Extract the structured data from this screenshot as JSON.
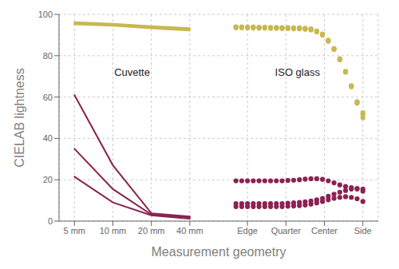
{
  "chart_data": {
    "type": "line",
    "xlabel": "Measurement geometry",
    "ylabel": "CIELAB lightness",
    "xlim": [
      -0.4,
      7.9
    ],
    "xticks": [
      {
        "value": 0,
        "label": "5 mm"
      },
      {
        "value": 1,
        "label": "10 mm"
      },
      {
        "value": 2,
        "label": "20 mm"
      },
      {
        "value": 3,
        "label": "40 mm"
      },
      {
        "value": 4.5,
        "label": "Edge"
      },
      {
        "value": 5.5,
        "label": "Quarter"
      },
      {
        "value": 6.5,
        "label": "Center"
      },
      {
        "value": 7.5,
        "label": "Side"
      }
    ],
    "ylim": [
      0,
      100
    ],
    "yticks": [
      0,
      20,
      40,
      60,
      80,
      100
    ],
    "grid": true,
    "annotations": [
      {
        "text": "Cuvette",
        "x": 1.5,
        "y": 72
      },
      {
        "text": "ISO glass",
        "x": 5.8,
        "y": 72
      }
    ],
    "series": [
      {
        "type": "line",
        "line_style": "solid",
        "color": "#C8B850",
        "x": [
          0,
          1,
          2,
          3
        ],
        "values": [
          95.2,
          94.5,
          93.2,
          92.2
        ]
      },
      {
        "type": "line",
        "line_style": "solid",
        "color": "#C8B850",
        "x": [
          0,
          1,
          2,
          3
        ],
        "values": [
          95.8,
          95.0,
          93.8,
          92.8
        ]
      },
      {
        "type": "line",
        "line_style": "solid",
        "color": "#C8B850",
        "x": [
          0,
          1,
          2,
          3
        ],
        "values": [
          96.2,
          95.5,
          94.3,
          93.3
        ]
      },
      {
        "type": "scatter",
        "marker": "circle",
        "color": "#C8B850",
        "x": [
          4.2,
          4.35,
          4.5,
          4.65,
          4.8,
          4.95,
          5.1,
          5.25,
          5.4,
          5.55,
          5.7,
          5.85,
          6.0,
          6.15,
          6.3,
          6.45,
          6.6,
          6.75,
          6.9,
          7.05,
          7.2,
          7.35,
          7.5
        ],
        "values": [
          93.5,
          93.5,
          93.4,
          93.4,
          93.3,
          93.3,
          93.2,
          93.2,
          93.1,
          93.1,
          93.0,
          93.0,
          92.8,
          92.5,
          91.5,
          90.0,
          87.0,
          83.0,
          78.0,
          72.0,
          65.0,
          57.0,
          50.0
        ]
      },
      {
        "type": "scatter",
        "marker": "circle",
        "color": "#C8B850",
        "x": [
          4.2,
          4.35,
          4.5,
          4.65,
          4.8,
          4.95,
          5.1,
          5.25,
          5.4,
          5.55,
          5.7,
          5.85,
          6.0,
          6.15,
          6.3,
          6.45,
          6.6,
          6.75,
          6.9,
          7.05,
          7.2,
          7.35,
          7.5
        ],
        "values": [
          93.8,
          93.8,
          93.7,
          93.7,
          93.6,
          93.6,
          93.5,
          93.5,
          93.4,
          93.4,
          93.3,
          93.3,
          93.1,
          92.8,
          91.8,
          90.3,
          87.3,
          83.3,
          78.3,
          72.3,
          65.3,
          57.5,
          51.5
        ]
      },
      {
        "type": "scatter",
        "marker": "circle",
        "color": "#C8B850",
        "x": [
          4.2,
          4.35,
          4.5,
          4.65,
          4.8,
          4.95,
          5.1,
          5.25,
          5.4,
          5.55,
          5.7,
          5.85,
          6.0,
          6.15,
          6.3,
          6.45,
          6.6,
          6.75,
          6.9,
          7.05,
          7.2,
          7.35,
          7.5
        ],
        "values": [
          94.0,
          94.0,
          93.9,
          93.9,
          93.8,
          93.8,
          93.7,
          93.7,
          93.6,
          93.6,
          93.5,
          93.5,
          93.3,
          93.0,
          92.0,
          90.5,
          87.5,
          83.5,
          78.5,
          72.5,
          65.5,
          57.8,
          52.5
        ]
      },
      {
        "type": "line",
        "line_style": "solid",
        "color": "#8B2252",
        "x": [
          0,
          1,
          2,
          3
        ],
        "values": [
          21.5,
          9.0,
          2.8,
          1.2
        ]
      },
      {
        "type": "line",
        "line_style": "solid",
        "color": "#8B2252",
        "x": [
          0,
          1,
          2,
          3
        ],
        "values": [
          35.0,
          15.5,
          3.2,
          1.8
        ]
      },
      {
        "type": "line",
        "line_style": "solid",
        "color": "#8B2252",
        "x": [
          0,
          1,
          2,
          3
        ],
        "values": [
          61.0,
          27.0,
          3.8,
          2.2
        ]
      },
      {
        "type": "scatter",
        "marker": "circle",
        "color": "#8B2252",
        "x": [
          4.2,
          4.35,
          4.5,
          4.65,
          4.8,
          4.95,
          5.1,
          5.25,
          5.4,
          5.55,
          5.7,
          5.85,
          6.0,
          6.15,
          6.3,
          6.45,
          6.6,
          6.75,
          6.9,
          7.05,
          7.2,
          7.35,
          7.5
        ],
        "values": [
          7.0,
          7.0,
          7.0,
          7.0,
          7.0,
          7.0,
          7.0,
          7.0,
          7.0,
          7.2,
          7.3,
          7.5,
          7.8,
          8.2,
          8.8,
          9.5,
          10.3,
          11.0,
          11.5,
          11.8,
          11.5,
          10.8,
          9.5
        ]
      },
      {
        "type": "scatter",
        "marker": "circle",
        "color": "#8B2252",
        "x": [
          4.2,
          4.35,
          4.5,
          4.65,
          4.8,
          4.95,
          5.1,
          5.25,
          5.4,
          5.55,
          5.7,
          5.85,
          6.0,
          6.15,
          6.3,
          6.45,
          6.6,
          6.75,
          6.9,
          7.05,
          7.2,
          7.35,
          7.5
        ],
        "values": [
          8.5,
          8.5,
          8.5,
          8.5,
          8.5,
          8.5,
          8.5,
          8.5,
          8.5,
          8.7,
          8.8,
          9.0,
          9.3,
          9.7,
          10.3,
          11.0,
          12.0,
          13.0,
          14.0,
          14.8,
          15.5,
          15.5,
          14.5
        ]
      },
      {
        "type": "scatter",
        "marker": "circle",
        "color": "#8B2252",
        "x": [
          4.2,
          4.35,
          4.5,
          4.65,
          4.8,
          4.95,
          5.1,
          5.25,
          5.4,
          5.55,
          5.7,
          5.85,
          6.0,
          6.15,
          6.3,
          6.45,
          6.6,
          6.75,
          6.9,
          7.05,
          7.2,
          7.35,
          7.5
        ],
        "values": [
          19.5,
          19.5,
          19.5,
          19.5,
          19.5,
          19.5,
          19.5,
          19.5,
          19.5,
          19.7,
          19.8,
          20.0,
          20.3,
          20.5,
          20.5,
          20.2,
          19.5,
          18.5,
          17.5,
          16.8,
          16.2,
          15.8,
          15.5
        ]
      }
    ]
  }
}
